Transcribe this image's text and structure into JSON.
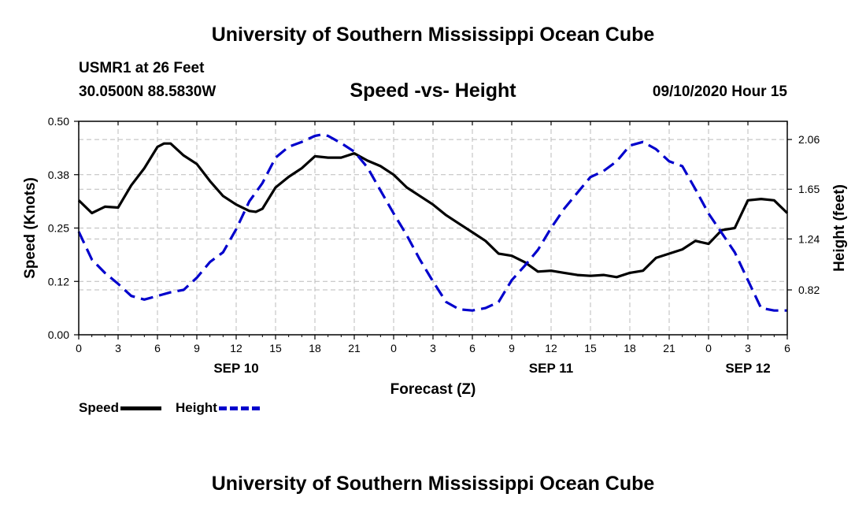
{
  "header": {
    "title": "University of Southern Mississippi Ocean Cube",
    "station": "USMR1 at 26 Feet",
    "coords": "30.0500N 88.5830W",
    "subtitle": "Speed -vs- Height",
    "datetime": "09/10/2020 Hour 15"
  },
  "footer": {
    "title": "University of Southern Mississippi Ocean Cube"
  },
  "legend": {
    "speed_label": "Speed",
    "height_label": "Height"
  },
  "colors": {
    "speed": "#000000",
    "height": "#0000cc",
    "grid": "#bbbbbb"
  },
  "chart_data": {
    "type": "line",
    "title": "Speed -vs- Height",
    "xlabel": "Forecast (Z)",
    "ylabel": "Speed (Knots)",
    "y2label": "Height (feet)",
    "xlim": [
      0,
      54
    ],
    "ylim": [
      0,
      0.5
    ],
    "y2lim": [
      0.45,
      2.21
    ],
    "grid": true,
    "x_ticks": [
      0,
      3,
      6,
      9,
      12,
      15,
      18,
      21,
      24,
      27,
      30,
      33,
      36,
      39,
      42,
      45,
      48,
      51,
      54
    ],
    "x_tick_labels": [
      "0",
      "3",
      "6",
      "9",
      "12",
      "15",
      "18",
      "21",
      "0",
      "3",
      "6",
      "9",
      "12",
      "15",
      "18",
      "21",
      "0",
      "3",
      "6"
    ],
    "y_ticks": [
      0,
      0.125,
      0.25,
      0.375,
      0.5
    ],
    "y_tick_labels": [
      "0.00",
      "0.12",
      "0.25",
      "0.38",
      "0.50"
    ],
    "y2_ticks": [
      0.82,
      1.24,
      1.65,
      2.06
    ],
    "y2_tick_labels": [
      "0.82",
      "1.24",
      "1.65",
      "2.06"
    ],
    "date_labels": [
      {
        "x": 12,
        "label": "SEP 10"
      },
      {
        "x": 36,
        "label": "SEP 11"
      },
      {
        "x": 51,
        "label": "SEP 12"
      }
    ],
    "series": [
      {
        "name": "Speed",
        "axis": "left",
        "style": "solid",
        "x": [
          0,
          1,
          2,
          3,
          4,
          5,
          6,
          6.5,
          7,
          8,
          9,
          10,
          11,
          12,
          13,
          13.5,
          14,
          15,
          16,
          17,
          18,
          19,
          20,
          21,
          22,
          23,
          24,
          25,
          26,
          27,
          28,
          29,
          30,
          31,
          32,
          33,
          34,
          35,
          36,
          37,
          38,
          39,
          40,
          41,
          42,
          43,
          44,
          45,
          46,
          47,
          48,
          49,
          50,
          51,
          52,
          53,
          54
        ],
        "values": [
          0.315,
          0.285,
          0.3,
          0.298,
          0.35,
          0.39,
          0.44,
          0.448,
          0.448,
          0.42,
          0.4,
          0.36,
          0.325,
          0.305,
          0.29,
          0.288,
          0.295,
          0.345,
          0.37,
          0.39,
          0.418,
          0.415,
          0.415,
          0.425,
          0.408,
          0.395,
          0.375,
          0.345,
          0.325,
          0.305,
          0.28,
          0.26,
          0.24,
          0.22,
          0.19,
          0.185,
          0.17,
          0.148,
          0.15,
          0.145,
          0.14,
          0.138,
          0.14,
          0.135,
          0.145,
          0.15,
          0.18,
          0.19,
          0.2,
          0.22,
          0.213,
          0.245,
          0.25,
          0.315,
          0.318,
          0.315,
          0.285
        ]
      },
      {
        "name": "Height",
        "axis": "right",
        "style": "dashed",
        "x": [
          0,
          1,
          2,
          3,
          4,
          5,
          6,
          7,
          8,
          9,
          10,
          11,
          12,
          13,
          14,
          15,
          16,
          17,
          18,
          18.5,
          19,
          20,
          21,
          22,
          23,
          24,
          25,
          26,
          27,
          28,
          29,
          30,
          31,
          32,
          33,
          34,
          35,
          36,
          37,
          38,
          39,
          40,
          41,
          42,
          43,
          44,
          45,
          46,
          47,
          48,
          49,
          50,
          51,
          52,
          53,
          54
        ],
        "values": [
          1.3,
          1.07,
          0.96,
          0.87,
          0.77,
          0.74,
          0.77,
          0.8,
          0.82,
          0.92,
          1.05,
          1.13,
          1.32,
          1.55,
          1.7,
          1.91,
          2.0,
          2.04,
          2.09,
          2.1,
          2.09,
          2.03,
          1.96,
          1.83,
          1.64,
          1.45,
          1.27,
          1.07,
          0.89,
          0.72,
          0.66,
          0.65,
          0.67,
          0.72,
          0.9,
          1.02,
          1.15,
          1.33,
          1.49,
          1.62,
          1.75,
          1.8,
          1.88,
          2.01,
          2.04,
          1.98,
          1.88,
          1.84,
          1.65,
          1.45,
          1.29,
          1.13,
          0.9,
          0.67,
          0.65,
          0.65
        ]
      }
    ]
  }
}
